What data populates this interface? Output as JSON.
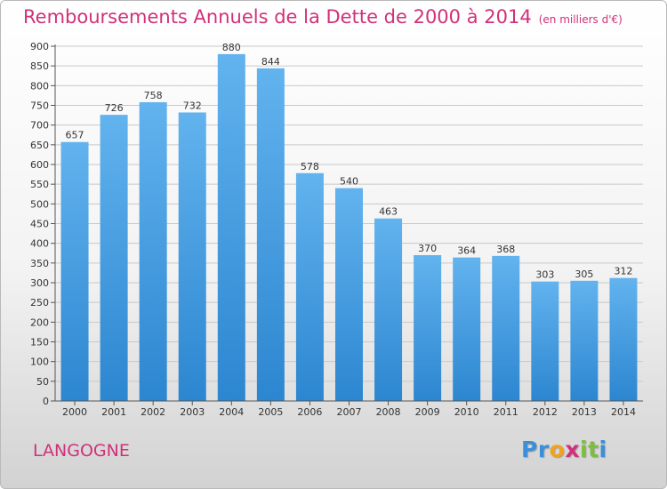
{
  "title": "Remboursements Annuels de la Dette de 2000 à 2014",
  "subtitle": "(en milliers d'€)",
  "commune": "LANGOGNE",
  "logo": {
    "letters": [
      "P",
      "r",
      "o",
      "x",
      "i",
      "t",
      "i"
    ],
    "colors": [
      "#3b8fd9",
      "#3b8fd9",
      "#f0a31c",
      "#d0317a",
      "#7cbf3c",
      "#7cbf3c",
      "#3b8fd9"
    ]
  },
  "colors": {
    "bar_light": "#62b3ee",
    "bar_dark": "#2c86d0",
    "title": "#d0317a"
  },
  "chart_data": {
    "type": "bar",
    "title": "Remboursements Annuels de la Dette de 2000 à 2014",
    "subtitle": "(en milliers d'€)",
    "categories": [
      "2000",
      "2001",
      "2002",
      "2003",
      "2004",
      "2005",
      "2006",
      "2007",
      "2008",
      "2009",
      "2010",
      "2011",
      "2012",
      "2013",
      "2014"
    ],
    "values": [
      657,
      726,
      758,
      732,
      880,
      844,
      578,
      540,
      463,
      370,
      364,
      368,
      303,
      305,
      312
    ],
    "ylim": [
      0,
      900
    ],
    "yticks": [
      0,
      50,
      100,
      150,
      200,
      250,
      300,
      350,
      400,
      450,
      500,
      550,
      600,
      650,
      700,
      750,
      800,
      850,
      900
    ],
    "grid": true,
    "legend": "none"
  }
}
